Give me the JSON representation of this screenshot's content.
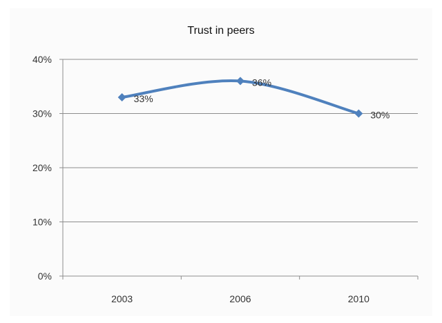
{
  "chart_data": {
    "type": "line",
    "title": "Trust in peers",
    "xlabel": "",
    "ylabel": "",
    "categories": [
      "2003",
      "2006",
      "2010"
    ],
    "series": [
      {
        "values": [
          33,
          36,
          30
        ],
        "data_labels": [
          "33%",
          "36%",
          "30%"
        ],
        "color": "#4f81bd",
        "smooth": true,
        "marker": "diamond"
      }
    ],
    "ylim": [
      0,
      40
    ],
    "y_ticks": [
      0,
      10,
      20,
      30,
      40
    ],
    "y_tick_labels": [
      "0%",
      "10%",
      "20%",
      "30%",
      "40%"
    ],
    "grid": true,
    "legend": "none"
  }
}
